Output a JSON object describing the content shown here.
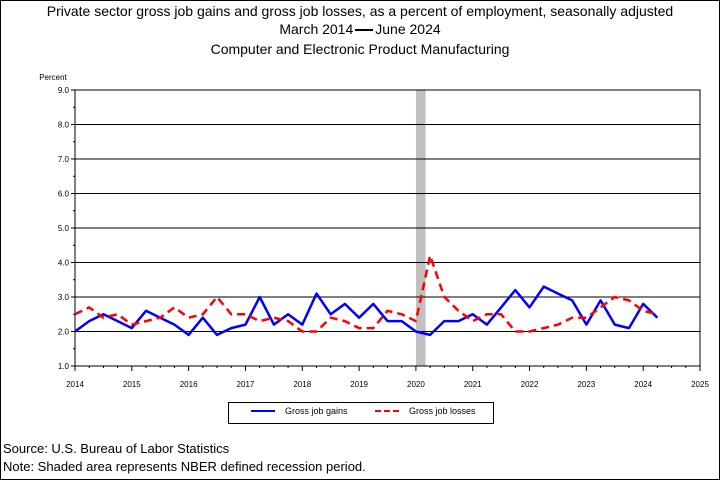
{
  "header": {
    "line1": "Private sector gross job gains and gross job losses, as a percent of employment, seasonally adjusted",
    "line2_start": "March 2014",
    "line2_end": "June 2024",
    "line3": "Computer and Electronic Product Manufacturing"
  },
  "footer": {
    "source": "Source: U.S. Bureau of Labor Statistics",
    "note": "Note: Shaded area represents NBER defined recession period."
  },
  "colors": {
    "gains": "#0000ff",
    "losses": "#ff0000",
    "recession": "#c0c0c0"
  },
  "chart_data": {
    "type": "line",
    "ylabel": "Percent",
    "ylim": [
      1.0,
      9.0
    ],
    "xlim": [
      2014,
      2025
    ],
    "yticks": [
      "1.0",
      "2.0",
      "3.0",
      "4.0",
      "5.0",
      "6.0",
      "7.0",
      "8.0",
      "9.0"
    ],
    "xticks": [
      "2014",
      "2015",
      "2016",
      "2017",
      "2018",
      "2019",
      "2020",
      "2021",
      "2022",
      "2023",
      "2024",
      "2025"
    ],
    "grid": true,
    "recession": [
      2020.0,
      2020.17
    ],
    "legend_position": "bottom",
    "x": [
      2014.0,
      2014.25,
      2014.5,
      2014.75,
      2015.0,
      2015.25,
      2015.5,
      2015.75,
      2016.0,
      2016.25,
      2016.5,
      2016.75,
      2017.0,
      2017.25,
      2017.5,
      2017.75,
      2018.0,
      2018.25,
      2018.5,
      2018.75,
      2019.0,
      2019.25,
      2019.5,
      2019.75,
      2020.0,
      2020.25,
      2020.5,
      2020.75,
      2021.0,
      2021.25,
      2021.5,
      2021.75,
      2022.0,
      2022.25,
      2022.5,
      2022.75,
      2023.0,
      2023.25,
      2023.5,
      2023.75,
      2024.0,
      2024.25
    ],
    "series": [
      {
        "name": "Gross job gains",
        "values": [
          2.0,
          2.3,
          2.5,
          2.3,
          2.1,
          2.6,
          2.4,
          2.2,
          1.9,
          2.4,
          1.9,
          2.1,
          2.2,
          3.0,
          2.2,
          2.5,
          2.2,
          3.1,
          2.5,
          2.8,
          2.4,
          2.8,
          2.3,
          2.3,
          2.0,
          1.9,
          2.3,
          2.3,
          2.5,
          2.2,
          2.7,
          3.2,
          2.7,
          3.3,
          3.1,
          2.9,
          2.2,
          2.9,
          2.2,
          2.1,
          2.8,
          2.4
        ]
      },
      {
        "name": "Gross job losses",
        "values": [
          2.5,
          2.7,
          2.4,
          2.5,
          2.2,
          2.3,
          2.4,
          2.7,
          2.4,
          2.5,
          3.0,
          2.5,
          2.5,
          2.3,
          2.4,
          2.3,
          2.0,
          2.0,
          2.4,
          2.3,
          2.1,
          2.1,
          2.6,
          2.5,
          2.3,
          4.2,
          3.0,
          2.6,
          2.3,
          2.5,
          2.5,
          2.0,
          2.0,
          2.1,
          2.2,
          2.4,
          2.4,
          2.7,
          3.0,
          2.9,
          2.6,
          2.5
        ]
      }
    ]
  }
}
